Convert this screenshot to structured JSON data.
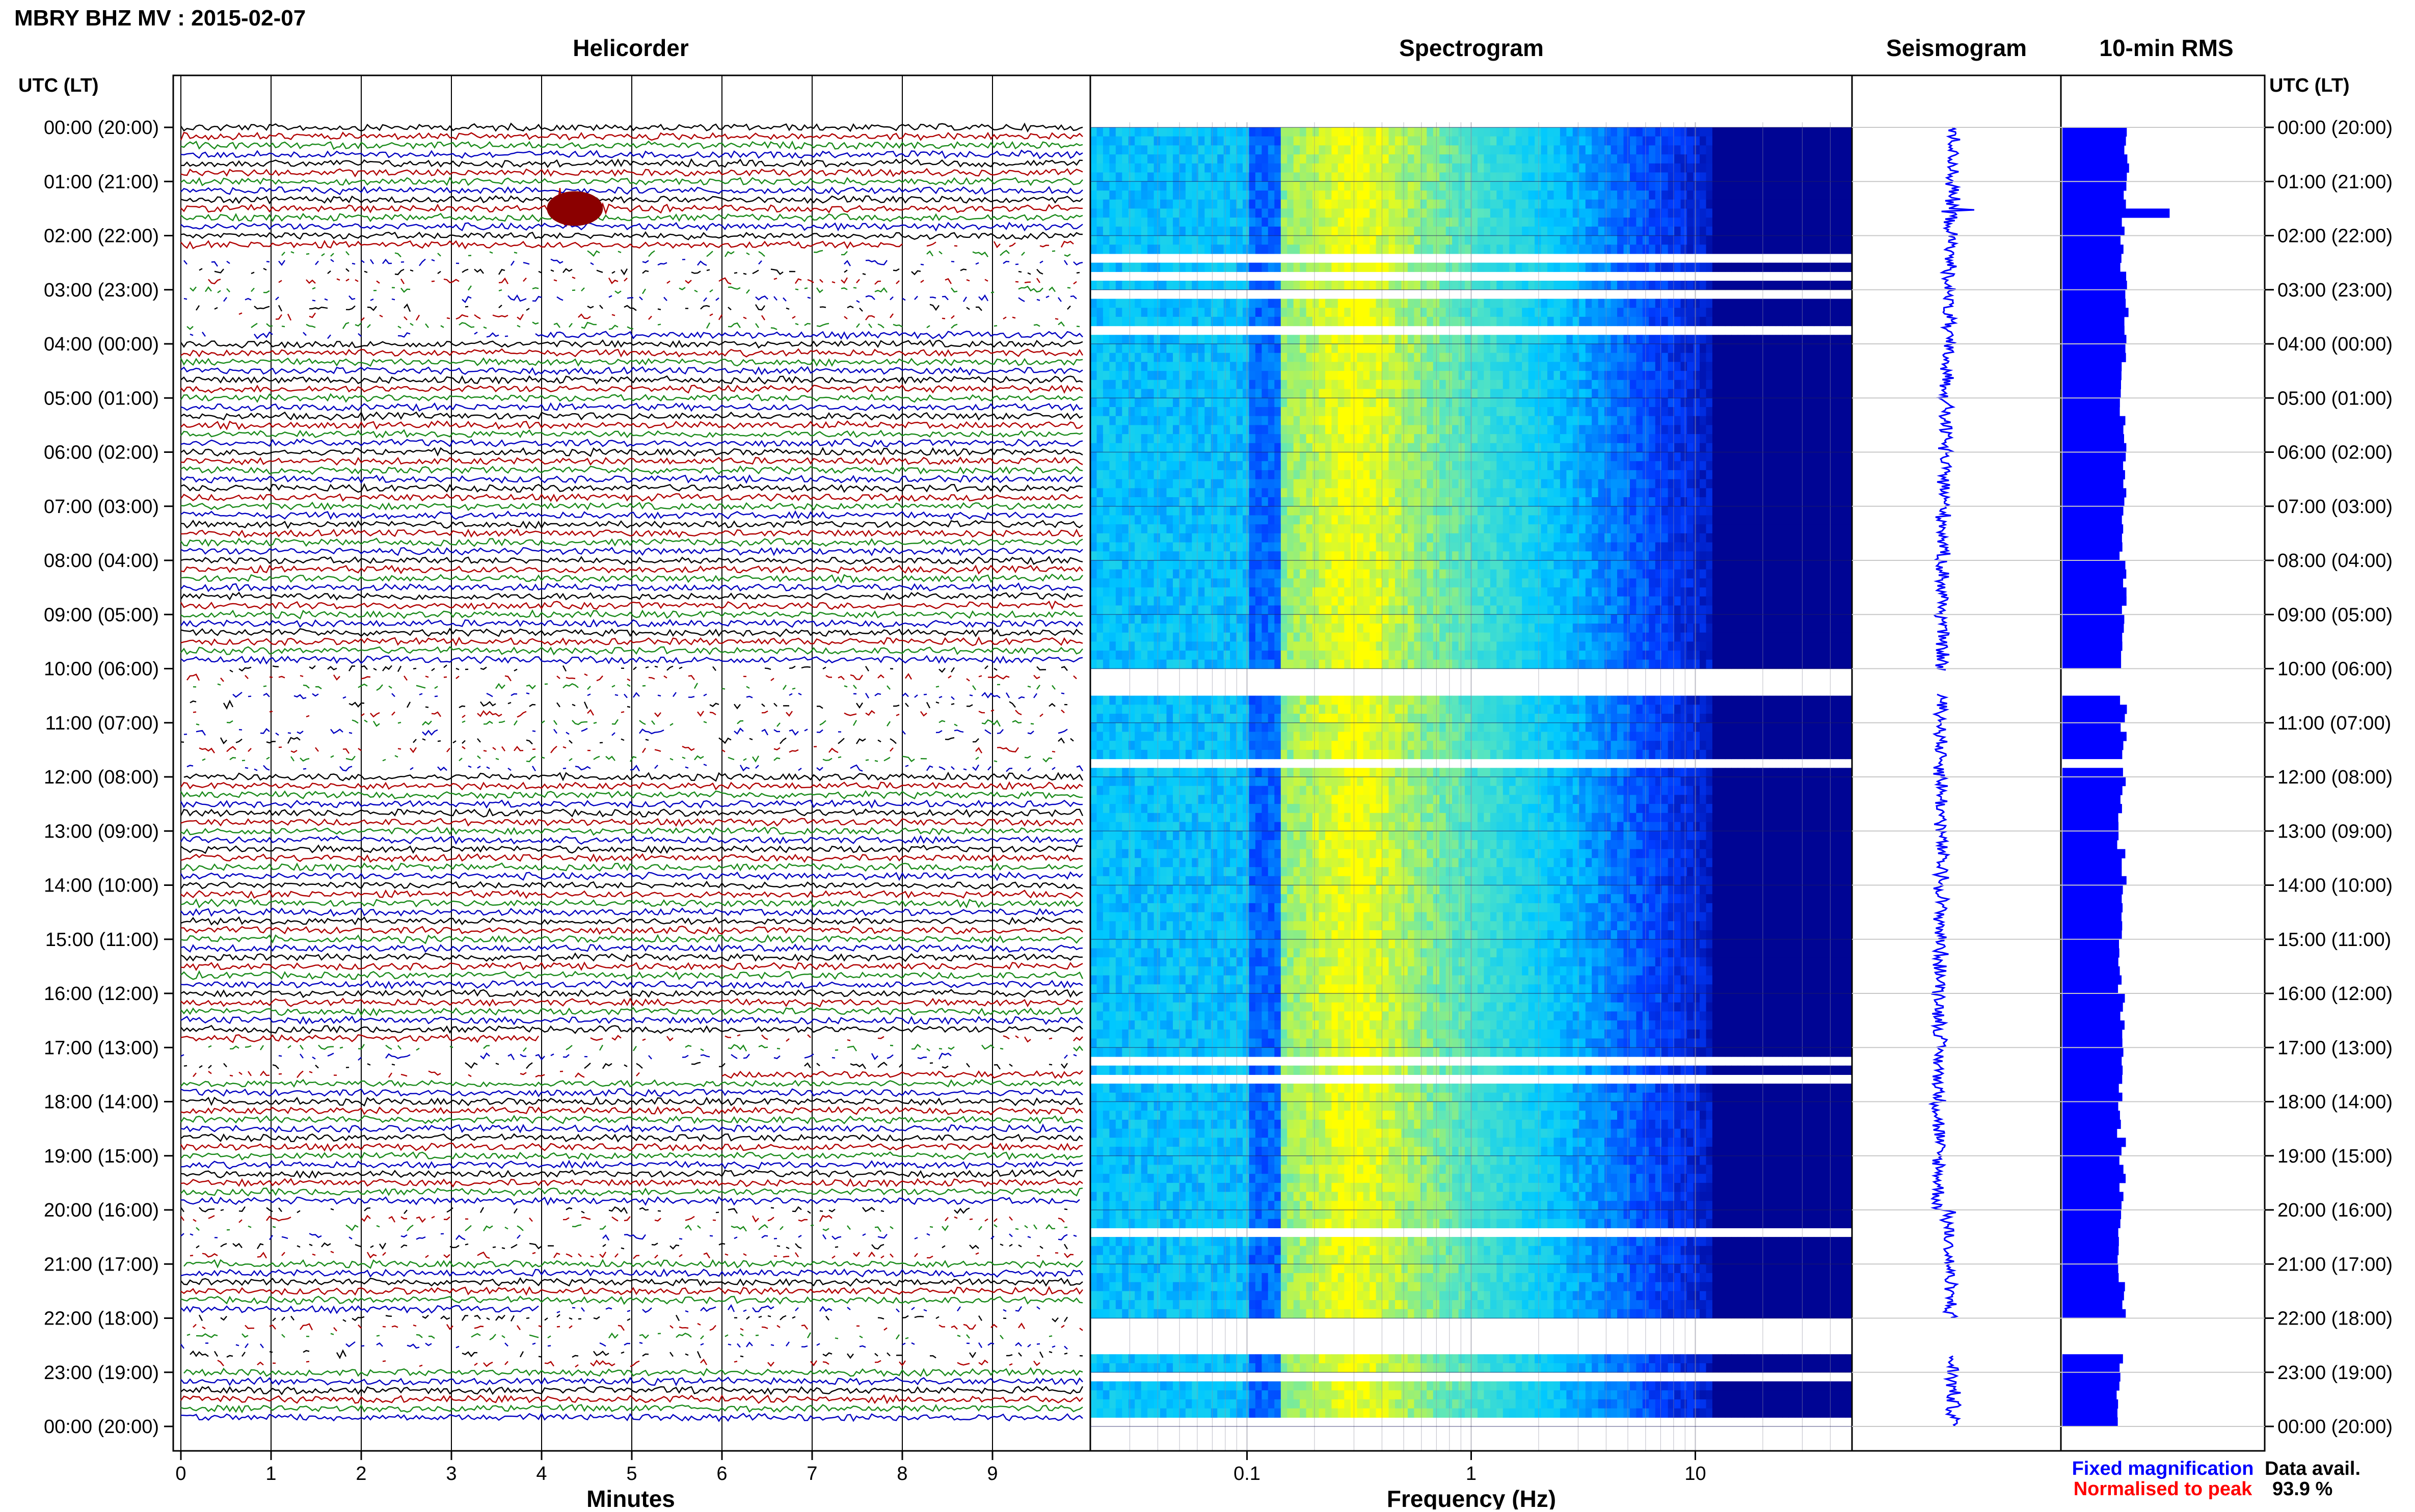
{
  "header": {
    "station_title": "MBRY BHZ MV : 2015-02-07"
  },
  "panels": {
    "helicorder": "Helicorder",
    "spectrogram": "Spectrogram",
    "seismogram": "Seismogram",
    "rms": "10-min RMS"
  },
  "axis_labels": {
    "left_time": "UTC (LT)",
    "right_time": "UTC (LT)",
    "minutes": "Minutes",
    "frequency": "Frequency (Hz)"
  },
  "legend": {
    "fixed": "Fixed magnification",
    "normalised": "Normalised to peak",
    "data_avail_label": "Data avail.",
    "data_avail_value": "93.9 %"
  },
  "colors": {
    "trace_cycle": [
      "#000000",
      "#b00000",
      "#1a8a1a",
      "#0000c0"
    ],
    "fixed_legend": "#0000ff",
    "normalised_legend": "#ff0000",
    "spectrogram_low": "#00008b",
    "spectrogram_mid": "#00ffff",
    "spectrogram_high": "#ffff00",
    "seismogram": "#0000ff",
    "rms_bar": "#0000ff"
  },
  "chart_data": [
    {
      "type": "line",
      "name": "helicorder",
      "title": "Helicorder",
      "xlabel": "Minutes",
      "x_ticks": [
        "0",
        "1",
        "2",
        "3",
        "4",
        "5",
        "6",
        "7",
        "8",
        "9"
      ],
      "xlim": [
        0,
        10
      ],
      "rows_per_hour": 6,
      "y_ticks": [
        "00:00 (20:00)",
        "01:00 (21:00)",
        "02:00 (22:00)",
        "03:00 (23:00)",
        "04:00 (00:00)",
        "05:00 (01:00)",
        "06:00 (02:00)",
        "07:00 (03:00)",
        "08:00 (04:00)",
        "09:00 (05:00)",
        "10:00 (06:00)",
        "11:00 (07:00)",
        "12:00 (08:00)",
        "13:00 (09:00)",
        "14:00 (10:00)",
        "15:00 (11:00)",
        "16:00 (12:00)",
        "17:00 (13:00)",
        "18:00 (14:00)",
        "19:00 (15:00)",
        "20:00 (16:00)",
        "21:00 (17:00)",
        "22:00 (18:00)",
        "23:00 (19:00)",
        "00:00 (20:00)"
      ],
      "y_ticks_right": [
        "00:00 (20:00)",
        "01:00 (21:00)",
        "02:00 (22:00)",
        "03:00 (23:00)",
        "04:00 (00:00)",
        "05:00 (01:00)",
        "06:00 (02:00)",
        "07:00 (03:00)",
        "08:00 (04:00)",
        "09:00 (05:00)",
        "10:00 (06:00)",
        "11:00 (07:00)",
        "12:00 (08:00)",
        "13:00 (09:00)",
        "14:00 (10:00)",
        "15:00 (11:00)",
        "16:00 (12:00)",
        "17:00 (13:00)",
        "18:00 (14:00)",
        "19:00 (15:00)",
        "20:00 (16:00)",
        "21:00 (17:00)",
        "22:00 (18:00)",
        "23:00 (19:00)",
        "00:00 (20:00)"
      ],
      "events": [
        {
          "hour": 1.5,
          "minute": 4.2,
          "amplitude": "large"
        }
      ],
      "gaps_hours": [
        [
          2.3,
          3.9
        ],
        [
          10.0,
          12.0
        ],
        [
          16.9,
          17.6
        ],
        [
          20.0,
          21.0
        ],
        [
          21.9,
          23.0
        ]
      ]
    },
    {
      "type": "heatmap",
      "name": "spectrogram",
      "title": "Spectrogram",
      "xlabel": "Frequency (Hz)",
      "x_scale": "log",
      "xlim": [
        0.02,
        50
      ],
      "x_ticks": [
        "0.1",
        "1",
        "10"
      ],
      "x_tick_values": [
        0.1,
        1,
        10
      ],
      "peak_frequency_hz": 0.3,
      "ylim_hours": [
        0,
        24
      ],
      "blank_hours": [
        [
          2.3,
          2.45
        ],
        [
          2.7,
          2.85
        ],
        [
          3.05,
          3.2
        ],
        [
          3.7,
          3.85
        ],
        [
          10.05,
          10.45
        ],
        [
          11.6,
          11.8
        ],
        [
          17.1,
          17.25
        ],
        [
          17.45,
          17.6
        ],
        [
          20.3,
          20.5
        ],
        [
          22.0,
          22.7
        ],
        [
          23.0,
          23.2
        ],
        [
          23.8,
          23.9
        ]
      ],
      "grid": true
    },
    {
      "type": "line",
      "name": "seismogram",
      "title": "Seismogram",
      "ylim_hours": [
        0,
        24
      ],
      "spike_hour": 1.55
    },
    {
      "type": "bar",
      "name": "rms",
      "title": "10-min RMS",
      "orientation": "horizontal",
      "ylim_hours": [
        0,
        24
      ],
      "values_relative": [
        0.6,
        0.58,
        0.57,
        0.6,
        0.59,
        0.57,
        0.58,
        0.58,
        1.0,
        0.57,
        0.56,
        0.56,
        0.55,
        0.55,
        0.55,
        0.54
      ],
      "gaps_hours": [
        [
          10.05,
          10.45
        ],
        [
          11.6,
          11.8
        ],
        [
          22.0,
          22.7
        ]
      ]
    }
  ]
}
